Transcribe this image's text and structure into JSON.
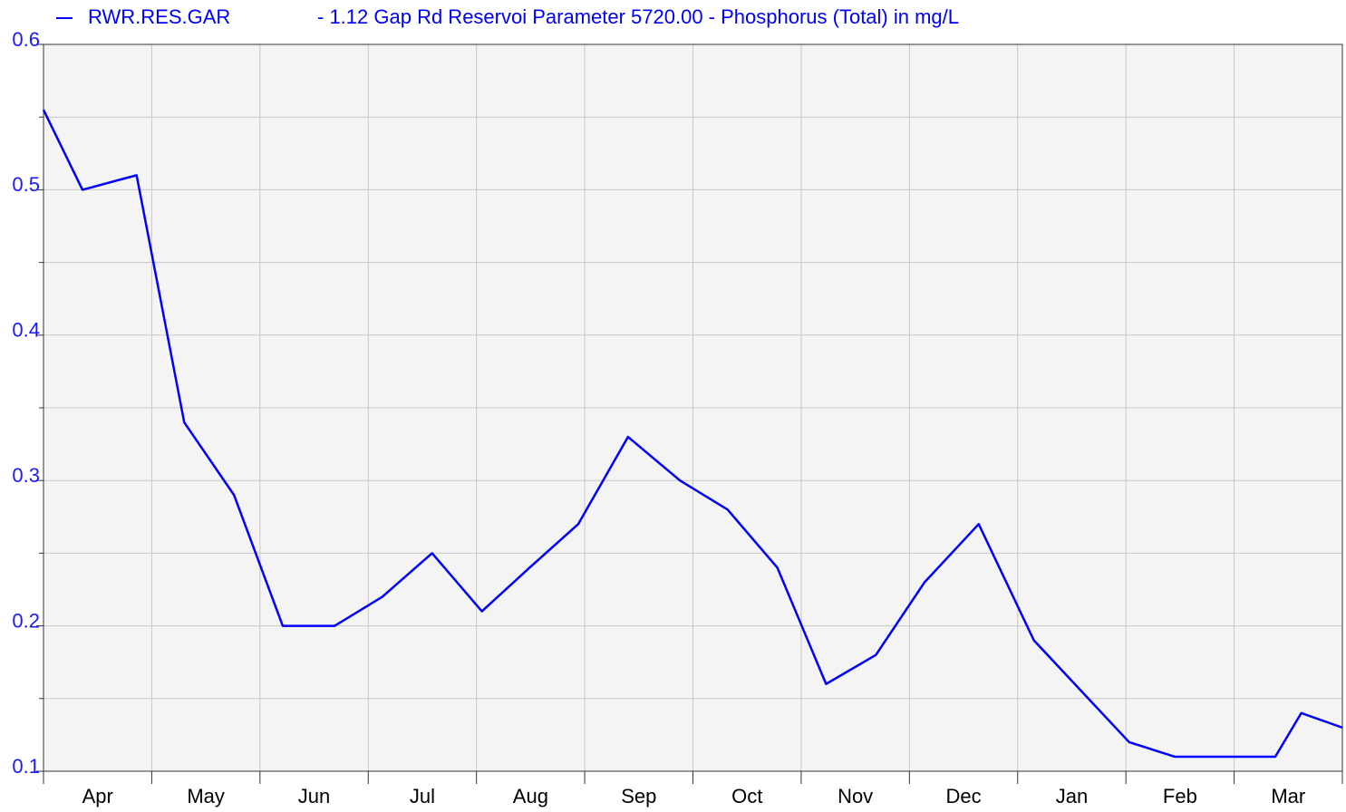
{
  "chart_data": {
    "type": "line",
    "title": "- 1.12 Gap Rd Reservoi Parameter 5720.00 - Phosphorus (Total) in mg/L",
    "categories": [
      "Apr",
      "May",
      "Jun",
      "Jul",
      "Aug",
      "Sep",
      "Oct",
      "Nov",
      "Dec",
      "Jan",
      "Feb",
      "Mar"
    ],
    "xlim": [
      0,
      12
    ],
    "x": [
      0,
      0.36,
      0.86,
      1.3,
      1.76,
      2.21,
      2.69,
      3.13,
      3.59,
      4.05,
      4.49,
      4.94,
      5.4,
      5.88,
      6.32,
      6.78,
      7.23,
      7.69,
      8.14,
      8.64,
      9.15,
      10.03,
      10.45,
      11.38,
      11.62,
      12.0
    ],
    "series": [
      {
        "name": "RWR.RES.GAR",
        "color": "#0000ff",
        "values": [
          0.555,
          0.5,
          0.51,
          0.34,
          0.29,
          0.2,
          0.2,
          0.22,
          0.25,
          0.21,
          0.24,
          0.27,
          0.33,
          0.3,
          0.28,
          0.24,
          0.16,
          0.18,
          0.23,
          0.27,
          0.19,
          0.12,
          0.11,
          0.11,
          0.14,
          0.13
        ]
      }
    ],
    "ylim": [
      0.1,
      0.6
    ],
    "yticks": [
      0.1,
      0.2,
      0.3,
      0.4,
      0.5,
      0.6
    ],
    "minor_yticks": [
      0.15,
      0.25,
      0.35,
      0.45,
      0.55
    ],
    "grid": true
  }
}
